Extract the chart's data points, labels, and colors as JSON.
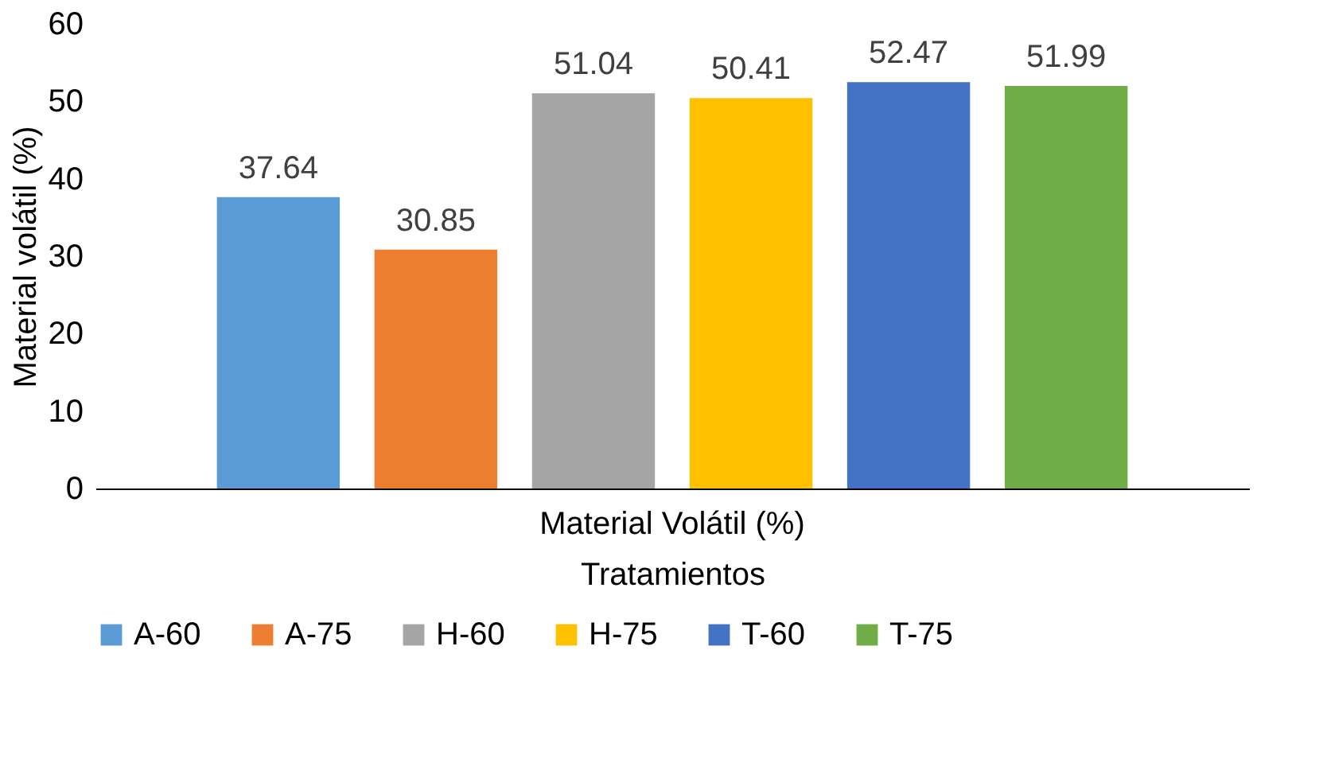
{
  "chart_data": {
    "type": "bar",
    "categories": [
      "Material Volátil (%)"
    ],
    "xlabel": "Tratamientos",
    "ylabel": "Material volátil (%)",
    "series": [
      {
        "name": "A-60",
        "color": "#5b9bd5",
        "values": [
          37.64
        ]
      },
      {
        "name": "A-75",
        "color": "#ed7d31",
        "values": [
          30.85
        ]
      },
      {
        "name": "H-60",
        "color": "#a5a5a5",
        "values": [
          51.04
        ]
      },
      {
        "name": "H-75",
        "color": "#ffc000",
        "values": [
          50.41
        ]
      },
      {
        "name": "T-60",
        "color": "#4472c4",
        "values": [
          52.47
        ]
      },
      {
        "name": "T-75",
        "color": "#70ad47",
        "values": [
          51.99
        ]
      }
    ],
    "ylim": [
      0,
      60
    ],
    "yticks": [
      0,
      10,
      20,
      30,
      40,
      50,
      60
    ],
    "grid": false,
    "legend": "bottom",
    "data_labels": true
  }
}
